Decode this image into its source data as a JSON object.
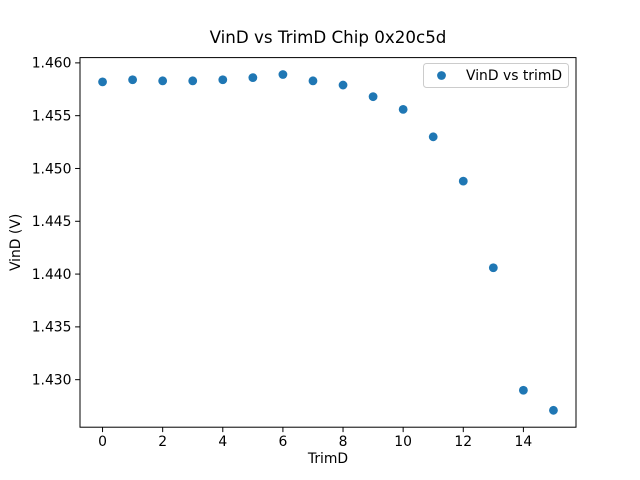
{
  "figure": {
    "background": "#ffffff"
  },
  "chart_data": {
    "type": "scatter",
    "title": "VinD vs TrimD Chip 0x20c5d",
    "xlabel": "TrimD",
    "ylabel": "VinD (V)",
    "series": [
      {
        "name": "VinD vs trimD",
        "marker": "circle",
        "color": "#1f77b4",
        "x": [
          0,
          1,
          2,
          3,
          4,
          5,
          6,
          7,
          8,
          9,
          10,
          11,
          12,
          13,
          14,
          15
        ],
        "y": [
          1.4582,
          1.4584,
          1.4583,
          1.4583,
          1.4584,
          1.4586,
          1.4589,
          1.4583,
          1.4579,
          1.4568,
          1.4556,
          1.453,
          1.4488,
          1.4406,
          1.429,
          1.4271
        ]
      }
    ],
    "legend": {
      "position": "upper right",
      "entries": [
        {
          "label": "VinD vs trimD",
          "marker_color": "#1f77b4"
        }
      ]
    },
    "xlim": [
      -0.75,
      15.75
    ],
    "ylim": [
      1.4255,
      1.4605
    ],
    "xticks": [
      0,
      2,
      4,
      6,
      8,
      10,
      12,
      14
    ],
    "xtick_labels": [
      "0",
      "2",
      "4",
      "6",
      "8",
      "10",
      "12",
      "14"
    ],
    "yticks": [
      1.43,
      1.435,
      1.44,
      1.445,
      1.45,
      1.455,
      1.46
    ],
    "ytick_labels": [
      "1.430",
      "1.435",
      "1.440",
      "1.445",
      "1.450",
      "1.455",
      "1.460"
    ],
    "grid": false,
    "axis_color": "#000000",
    "plot_background": "#ffffff"
  }
}
